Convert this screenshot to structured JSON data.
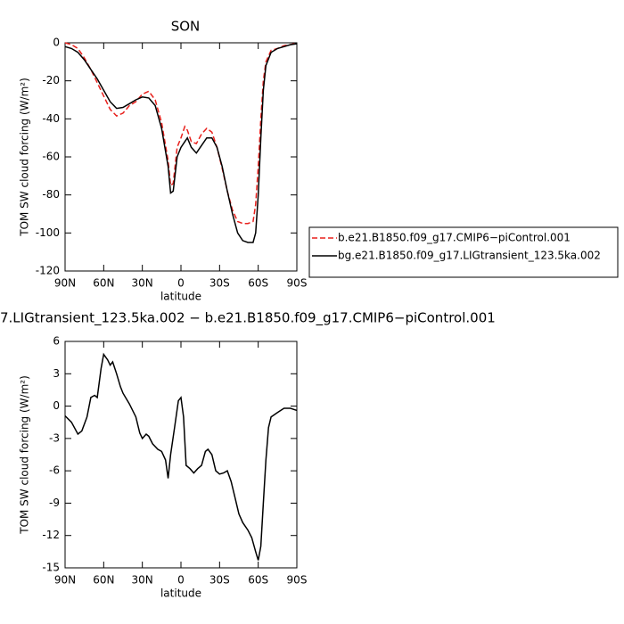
{
  "chart_data": [
    {
      "type": "line",
      "title": "SON",
      "xlabel": "latitude",
      "ylabel": "TOM SW cloud forcing (W/m²)",
      "x": [
        90,
        85,
        80,
        75,
        70,
        65,
        60,
        55,
        50,
        45,
        40,
        35,
        30,
        25,
        20,
        15,
        10,
        8,
        6,
        3,
        0,
        -3,
        -5,
        -8,
        -12,
        -16,
        -20,
        -24,
        -28,
        -32,
        -36,
        -40,
        -44,
        -48,
        -52,
        -56,
        -58,
        -60,
        -62,
        -64,
        -66,
        -70,
        -75,
        -80,
        -85,
        -90
      ],
      "series": [
        {
          "name": "b.e21.B1850.f09_g17.CMIP6−piControl.001",
          "color": "#e8201c",
          "dashed": true,
          "values": [
            0,
            -1,
            -3,
            -8,
            -14,
            -21,
            -28,
            -35,
            -38.5,
            -37,
            -33,
            -31,
            -27,
            -25.5,
            -30,
            -42,
            -62,
            -75,
            -74,
            -55,
            -50,
            -44,
            -46,
            -52,
            -53,
            -48,
            -45,
            -47,
            -55,
            -66,
            -78,
            -88,
            -94,
            -95,
            -95,
            -94,
            -85,
            -65,
            -40,
            -20,
            -10,
            -4,
            -3,
            -1.5,
            -1,
            0
          ]
        },
        {
          "name": "bg.e21.B1850.f09_g17.LIGtransient_123.5ka.002",
          "color": "#000000",
          "dashed": false,
          "values": [
            -2,
            -3,
            -5,
            -9,
            -14,
            -19,
            -25,
            -31,
            -34.5,
            -34,
            -32,
            -30,
            -28.5,
            -29,
            -33,
            -45,
            -65,
            -79,
            -78,
            -60,
            -55,
            -52,
            -50,
            -55,
            -58,
            -54,
            -50,
            -50,
            -55,
            -65,
            -78,
            -90,
            -100,
            -104,
            -105,
            -105,
            -100,
            -80,
            -50,
            -25,
            -12,
            -5,
            -3,
            -2,
            -1,
            -0.5
          ]
        }
      ],
      "xlim": [
        90,
        -90
      ],
      "xticks": [
        {
          "value": 90,
          "label": "90N"
        },
        {
          "value": 60,
          "label": "60N"
        },
        {
          "value": 30,
          "label": "30N"
        },
        0,
        {
          "value": -30,
          "label": "30S"
        },
        {
          "value": -60,
          "label": "60S"
        },
        {
          "value": -90,
          "label": "90S"
        }
      ],
      "ylim": [
        -120,
        0
      ],
      "yticks": [
        0,
        -20,
        -40,
        -60,
        -80,
        -100,
        -120
      ],
      "legend": "right"
    },
    {
      "type": "line",
      "title": "7.LIGtransient_123.5ka.002 − b.e21.B1850.f09_g17.CMIP6−piControl.001",
      "xlabel": "latitude",
      "ylabel": "TOM SW cloud forcing (W/m²)",
      "x": [
        90,
        85,
        80,
        77,
        73,
        70,
        67,
        65,
        62,
        60,
        57,
        55,
        53,
        50,
        47,
        45,
        40,
        35,
        32,
        30,
        27,
        25,
        22,
        18,
        15,
        12,
        10,
        8,
        5,
        2,
        0,
        -2,
        -4,
        -7,
        -10,
        -13,
        -16,
        -19,
        -21,
        -24,
        -27,
        -30,
        -33,
        -36,
        -39,
        -42,
        -45,
        -48,
        -52,
        -55,
        -58,
        -60,
        -62,
        -64,
        -66,
        -68,
        -70,
        -75,
        -80,
        -85,
        -90
      ],
      "series": [
        {
          "color": "#000000",
          "dashed": false,
          "values": [
            -0.9,
            -1.5,
            -2.6,
            -2.3,
            -1,
            0.8,
            1,
            0.8,
            3.5,
            4.8,
            4.3,
            3.8,
            4.1,
            3,
            1.8,
            1.2,
            0.2,
            -1,
            -2.5,
            -3,
            -2.6,
            -2.8,
            -3.5,
            -4,
            -4.2,
            -5,
            -6.7,
            -4.5,
            -2,
            0.5,
            0.8,
            -1,
            -5.5,
            -5.8,
            -6.2,
            -5.8,
            -5.5,
            -4.2,
            -4,
            -4.5,
            -6,
            -6.3,
            -6.2,
            -6,
            -7,
            -8.5,
            -10,
            -10.8,
            -11.5,
            -12.2,
            -13.5,
            -14.3,
            -13,
            -9,
            -5,
            -2,
            -1,
            -0.6,
            -0.2,
            -0.2,
            -0.4
          ]
        }
      ],
      "xlim": [
        90,
        -90
      ],
      "xticks": [
        {
          "value": 90,
          "label": "90N"
        },
        {
          "value": 60,
          "label": "60N"
        },
        {
          "value": 30,
          "label": "30N"
        },
        0,
        {
          "value": -30,
          "label": "30S"
        },
        {
          "value": -60,
          "label": "60S"
        },
        {
          "value": -90,
          "label": "90S"
        }
      ],
      "ylim": [
        -15,
        6
      ],
      "yticks": [
        6,
        3,
        0,
        -3,
        -6,
        -9,
        -12,
        -15
      ]
    }
  ]
}
